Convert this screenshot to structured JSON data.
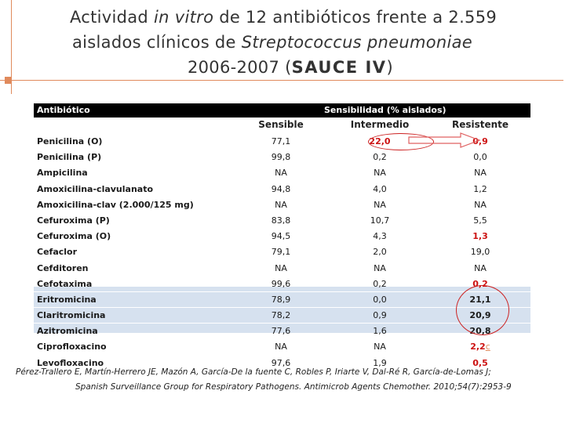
{
  "title": {
    "line1_a": "Actividad ",
    "line1_b": "in vitro",
    "line1_c": " de 12 antibióticos frente a 2.559",
    "line2_a": "aislados clínicos de ",
    "line2_b": "Streptococcus pneumoniae",
    "line3_a": "2006-2007 (",
    "line3_b": "SAUCE IV",
    "line3_c": ")"
  },
  "table": {
    "header_antibiotic": "Antibiótico",
    "header_sensitivity": "Sensibilidad  (% aislados)",
    "subheaders": [
      "Sensible",
      "Intermedio",
      "Resistente"
    ],
    "rows": [
      {
        "name": "Penicilina (O)",
        "values": [
          "77,1",
          "22,0",
          "0,9"
        ]
      },
      {
        "name": "Penicilina (P)",
        "values": [
          "99,8",
          "0,2",
          "0,0"
        ]
      },
      {
        "name": "Ampicilina",
        "values": [
          "NA",
          "NA",
          "NA"
        ]
      },
      {
        "name": "Amoxicilina-clavulanato",
        "values": [
          "94,8",
          "4,0",
          "1,2"
        ]
      },
      {
        "name": "Amoxicilina-clav (2.000/125 mg)",
        "values": [
          "NA",
          "NA",
          "NA"
        ]
      },
      {
        "name": "Cefuroxima (P)",
        "values": [
          "83,8",
          "10,7",
          "5,5"
        ]
      },
      {
        "name": "Cefuroxima (O)",
        "values": [
          "94,5",
          "4,3",
          "1,3"
        ]
      },
      {
        "name": "Cefaclor",
        "values": [
          "79,1",
          "2,0",
          "19,0"
        ]
      },
      {
        "name": "Cefditoren",
        "values": [
          "NA",
          "NA",
          "NA"
        ]
      },
      {
        "name": "Cefotaxima",
        "values": [
          "99,6",
          "0,2",
          "0,2"
        ]
      },
      {
        "name": "Eritromicina",
        "values": [
          "78,9",
          "0,0",
          "21,1"
        ]
      },
      {
        "name": "Claritromicina",
        "values": [
          "78,2",
          "0,9",
          "20,9"
        ]
      },
      {
        "name": "Azitromicina",
        "values": [
          "77,6",
          "1,6",
          "20,8"
        ]
      },
      {
        "name": "Ciprofloxacino",
        "values": [
          "NA",
          "NA",
          "2,2"
        ]
      },
      {
        "name": "Levofloxacino",
        "values": [
          "97,6",
          "1,9",
          "0,5"
        ]
      }
    ],
    "marker": "c"
  },
  "citation": {
    "line1": "Pérez-Trallero E, Martín-Herrero JE, Mazón A, García-De la fuente C, Robles P, Iriarte V, Dal-Ré R, García-de-Lomas J;",
    "line2": "Spanish Surveillance Group for Respiratory Pathogens. Antimicrob Agents Chemother. 2010;54(7):2953-9"
  },
  "colors": {
    "accent_orange": "#e08a5c",
    "highlight_red": "#cc1111",
    "row_shade": "#d6e1ef"
  }
}
